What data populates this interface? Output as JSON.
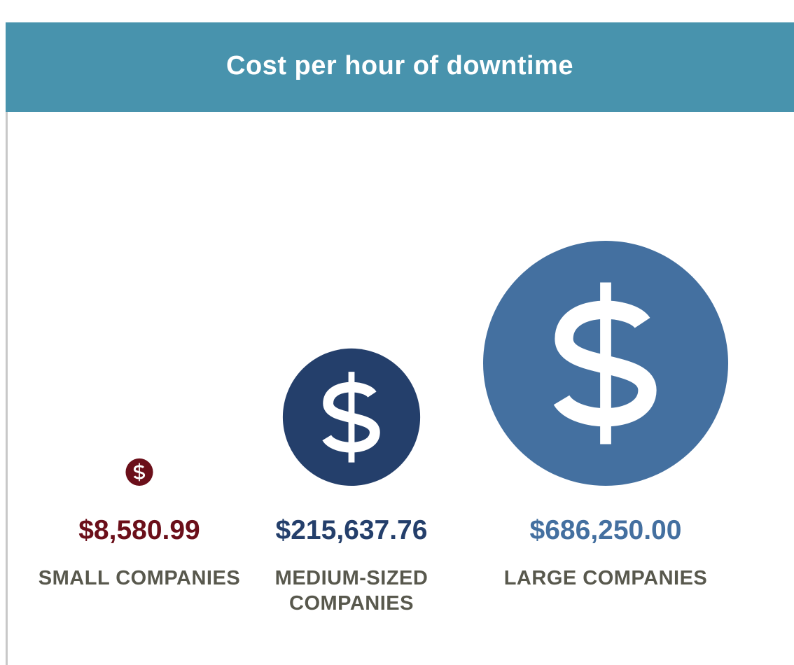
{
  "chart_data": {
    "type": "bubble",
    "title": "Cost per hour of downtime",
    "categories": [
      "SMALL COMPANIES",
      "MEDIUM-SIZED COMPANIES",
      "LARGE COMPANIES"
    ],
    "values": [
      8580.99,
      215637.76,
      686250.0
    ],
    "value_labels": [
      "$8,580.99",
      "$215,637.76",
      "$686,250.00"
    ],
    "colors": [
      "#6b0f1a",
      "#243f6b",
      "#4470a0"
    ]
  }
}
